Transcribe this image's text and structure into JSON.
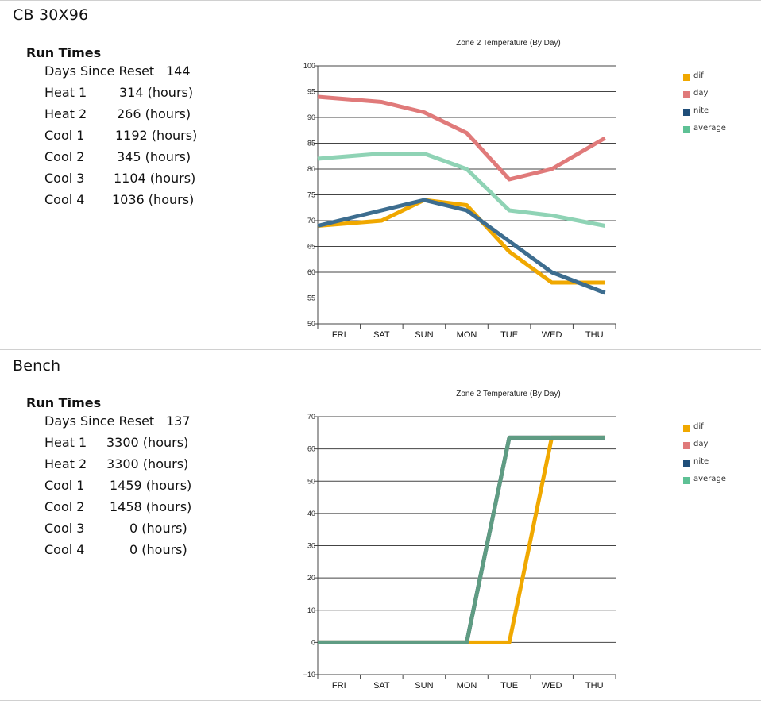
{
  "sections": [
    {
      "title": "CB 30X96",
      "run_times_heading": "Run Times",
      "stats": [
        {
          "label": "Days Since Reset",
          "value": "144"
        },
        {
          "label": "Heat 1",
          "value": "314 (hours)"
        },
        {
          "label": "Heat 2",
          "value": "266 (hours)"
        },
        {
          "label": "Cool 1",
          "value": "1192 (hours)"
        },
        {
          "label": "Cool 2",
          "value": "345 (hours)"
        },
        {
          "label": "Cool 3",
          "value": "1104 (hours)"
        },
        {
          "label": "Cool 4",
          "value": "1036 (hours)"
        }
      ],
      "legend": [
        {
          "name": "dif",
          "color": "#f0a800"
        },
        {
          "name": "day",
          "color": "#e07a7a"
        },
        {
          "name": "nite",
          "color": "#1f4e79"
        },
        {
          "name": "average",
          "color": "#5ec195"
        }
      ]
    },
    {
      "title": "Bench",
      "run_times_heading": "Run Times",
      "stats": [
        {
          "label": "Days Since Reset",
          "value": "137"
        },
        {
          "label": "Heat 1",
          "value": "3300 (hours)"
        },
        {
          "label": "Heat 2",
          "value": "3300 (hours)"
        },
        {
          "label": "Cool 1",
          "value": "1459 (hours)"
        },
        {
          "label": "Cool 2",
          "value": "1458 (hours)"
        },
        {
          "label": "Cool 3",
          "value": "0 (hours)"
        },
        {
          "label": "Cool 4",
          "value": "0 (hours)"
        }
      ],
      "legend": [
        {
          "name": "dif",
          "color": "#f0a800"
        },
        {
          "name": "day",
          "color": "#e07a7a"
        },
        {
          "name": "nite",
          "color": "#1f4e79"
        },
        {
          "name": "average",
          "color": "#5ec195"
        }
      ]
    }
  ],
  "chart_data": [
    {
      "type": "line",
      "title": "Zone 2 Temperature (By Day)",
      "xlabel": "",
      "ylabel": "",
      "categories": [
        "FRI",
        "SAT",
        "SUN",
        "MON",
        "TUE",
        "WED",
        "THU"
      ],
      "ylim": [
        50,
        100
      ],
      "yticks": [
        50,
        55,
        60,
        65,
        70,
        75,
        80,
        85,
        90,
        95,
        100
      ],
      "grid": true,
      "legend_position": "right",
      "series": [
        {
          "name": "dif",
          "color": "#f0a800",
          "values": [
            69,
            70,
            74,
            73,
            64,
            58,
            58
          ]
        },
        {
          "name": "day",
          "color": "#e07a7a",
          "values": [
            94,
            93,
            91,
            87,
            78,
            80,
            86
          ]
        },
        {
          "name": "nite",
          "color": "#3d6d8f",
          "values": [
            69,
            72,
            74,
            72,
            66,
            60,
            56
          ]
        },
        {
          "name": "average",
          "color": "#8fd3b5",
          "values": [
            82,
            83,
            83,
            80,
            72,
            71,
            69
          ]
        }
      ]
    },
    {
      "type": "line",
      "title": "Zone 2 Temperature (By Day)",
      "xlabel": "",
      "ylabel": "",
      "categories": [
        "FRI",
        "SAT",
        "SUN",
        "MON",
        "TUE",
        "WED",
        "THU"
      ],
      "ylim": [
        -10,
        70
      ],
      "yticks": [
        -10,
        0,
        10,
        20,
        30,
        40,
        50,
        60,
        70
      ],
      "grid": true,
      "legend_position": "right",
      "series": [
        {
          "name": "dif",
          "color": "#f0a800",
          "values": [
            0,
            0,
            0,
            0,
            0,
            63.5,
            63.5
          ]
        },
        {
          "name": "day",
          "color": "#c98a7d",
          "values": [
            0,
            0,
            0,
            0,
            63.5,
            63.5,
            63.5
          ]
        },
        {
          "name": "nite",
          "color": "#3d6d8f",
          "values": [
            0,
            0,
            0,
            0,
            63.5,
            63.5,
            63.5
          ]
        },
        {
          "name": "average",
          "color": "#5f9c83",
          "values": [
            0,
            0,
            0,
            0,
            63.5,
            63.5,
            63.5
          ]
        }
      ]
    }
  ]
}
